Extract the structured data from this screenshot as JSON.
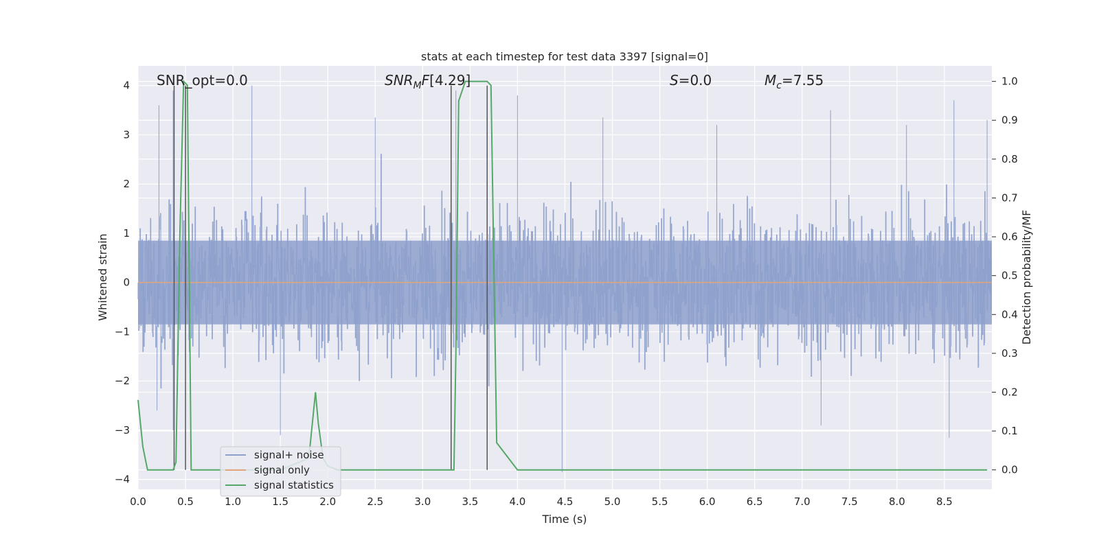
{
  "chart_data": {
    "type": "line",
    "title": "stats at each timestep for test data 3397 [signal=0]",
    "xlabel": "Time (s)",
    "ylabel": "Whitened strain",
    "ylabel_right": "Detection probability/MF",
    "xlim": [
      0.0,
      9.0
    ],
    "ylim": [
      -4.2,
      4.4
    ],
    "ylim_right": [
      -0.05,
      1.04
    ],
    "x_ticks": [
      "0.0",
      "0.5",
      "1.0",
      "1.5",
      "2.0",
      "2.5",
      "3.0",
      "3.5",
      "4.0",
      "4.5",
      "5.0",
      "5.5",
      "6.0",
      "6.5",
      "7.0",
      "7.5",
      "8.0",
      "8.5"
    ],
    "y_ticks": [
      "4",
      "3",
      "2",
      "1",
      "0",
      "−1",
      "−2",
      "−3",
      "−4"
    ],
    "y_right_ticks": [
      "1.0",
      "0.9",
      "0.8",
      "0.7",
      "0.6",
      "0.5",
      "0.4",
      "0.3",
      "0.2",
      "0.1",
      "0.0"
    ],
    "grid": true,
    "legend_position": "lower-left",
    "annotations": {
      "snr_opt": "SNR_opt=0.0",
      "snr_mf": "[4.29]",
      "s_value": "=0.0",
      "mc_value": "=7.55"
    },
    "series": [
      {
        "name": "signal+ noise",
        "color": "#8da0cb",
        "description_of_values": "whitened strain noise, amplitude roughly within [-3, 3] with peaks to 4",
        "envelope_peaks_upper": [
          [
            0.22,
            3.6
          ],
          [
            0.37,
            3.9
          ],
          [
            1.2,
            4.0
          ],
          [
            2.5,
            3.35
          ],
          [
            3.35,
            3.9
          ],
          [
            4.0,
            3.8
          ],
          [
            4.9,
            3.35
          ],
          [
            6.1,
            3.2
          ],
          [
            7.3,
            3.5
          ],
          [
            8.1,
            3.2
          ],
          [
            8.6,
            3.7
          ],
          [
            8.95,
            3.3
          ]
        ],
        "envelope_peaks_lower": [
          [
            0.2,
            -2.6
          ],
          [
            0.37,
            -3.0
          ],
          [
            1.5,
            -3.1
          ],
          [
            3.3,
            -3.5
          ],
          [
            4.47,
            -3.85
          ],
          [
            7.2,
            -2.9
          ],
          [
            8.55,
            -3.15
          ]
        ]
      },
      {
        "name": "signal only",
        "color": "#e5a47a",
        "x": [
          0.0,
          9.0
        ],
        "values": [
          0.0,
          0.0
        ]
      },
      {
        "name": "signal statistics",
        "color": "#55a868",
        "axis": "right",
        "x": [
          0.0,
          0.05,
          0.1,
          0.2,
          0.3,
          0.37,
          0.4,
          0.44,
          0.48,
          0.52,
          0.56,
          0.6,
          0.7,
          0.8,
          0.9,
          1.0,
          1.2,
          1.5,
          1.8,
          1.87,
          1.9,
          1.95,
          2.0,
          2.1,
          2.5,
          3.0,
          3.2,
          3.3,
          3.33,
          3.35,
          3.38,
          3.45,
          3.6,
          3.68,
          3.72,
          3.78,
          4.0,
          5.0,
          6.0,
          7.0,
          8.0,
          8.95
        ],
        "values": [
          0.18,
          0.06,
          0.0,
          0.0,
          0.0,
          0.0,
          0.02,
          0.6,
          1.0,
          0.99,
          0.0,
          0.0,
          0.0,
          0.0,
          0.0,
          0.0,
          0.0,
          0.0,
          0.03,
          0.2,
          0.12,
          0.03,
          0.01,
          0.0,
          0.0,
          0.0,
          0.0,
          0.0,
          0.0,
          0.3,
          0.95,
          1.0,
          1.0,
          1.0,
          0.99,
          0.07,
          0.0,
          0.0,
          0.0,
          0.0,
          0.0,
          0.0
        ]
      }
    ],
    "vlines": [
      0.38,
      0.5,
      3.3,
      3.68
    ],
    "vline_color": "#555555",
    "legend": [
      {
        "label": "signal+ noise",
        "color": "#8da0cb"
      },
      {
        "label": "signal only",
        "color": "#e5a47a"
      },
      {
        "label": "signal statistics",
        "color": "#55a868"
      }
    ]
  }
}
